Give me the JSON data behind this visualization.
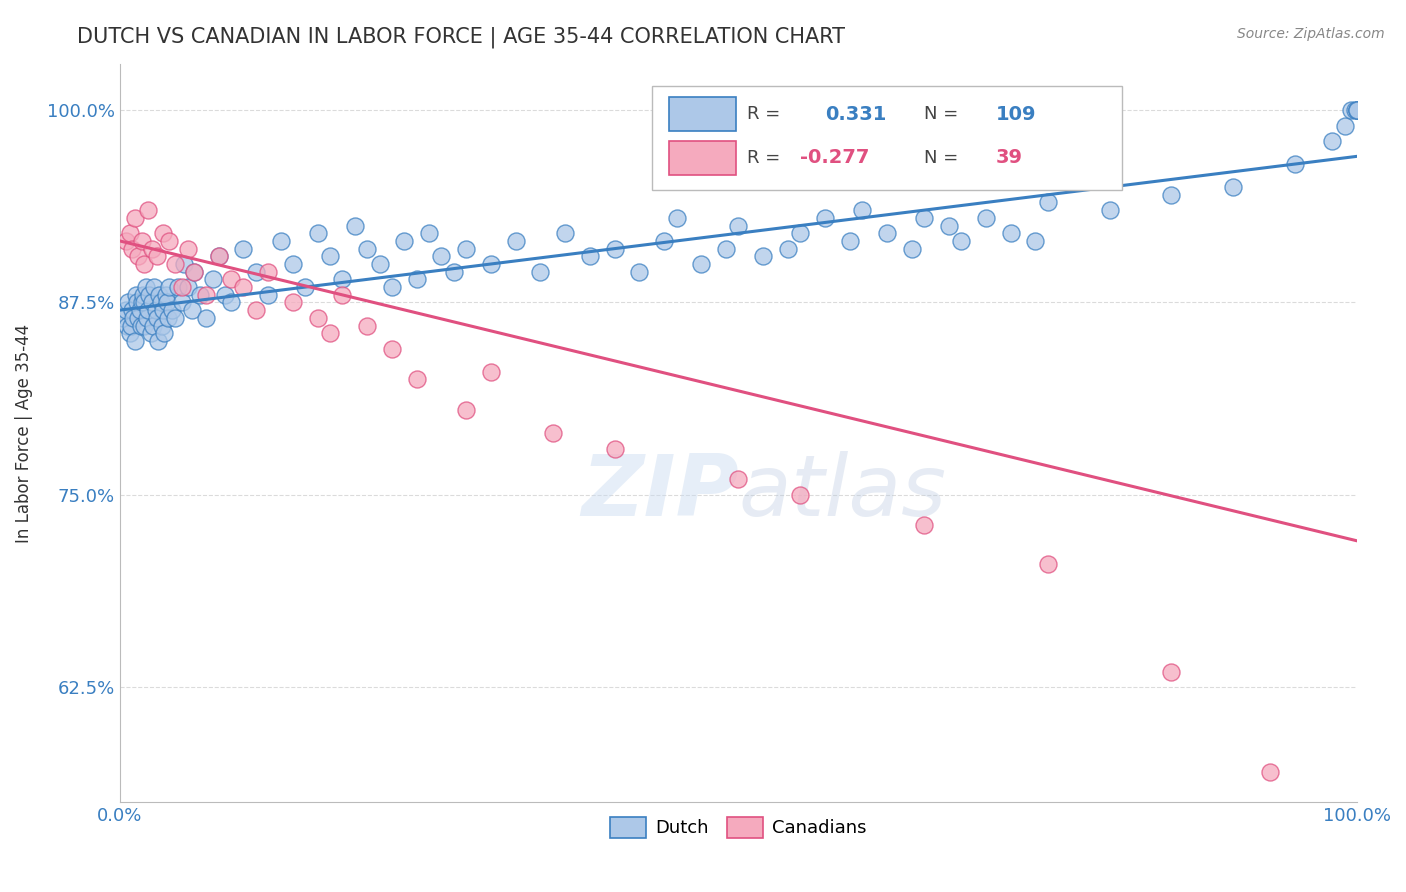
{
  "title": "DUTCH VS CANADIAN IN LABOR FORCE | AGE 35-44 CORRELATION CHART",
  "source": "Source: ZipAtlas.com",
  "ylabel": "In Labor Force | Age 35-44",
  "xlim": [
    0.0,
    100.0
  ],
  "ylim": [
    55.0,
    103.0
  ],
  "yticks": [
    62.5,
    75.0,
    87.5,
    100.0
  ],
  "xticklabels": [
    "0.0%",
    "100.0%"
  ],
  "yticklabels": [
    "62.5%",
    "75.0%",
    "87.5%",
    "100.0%"
  ],
  "dutch_R": 0.331,
  "dutch_N": 109,
  "canadian_R": -0.277,
  "canadian_N": 39,
  "dutch_color": "#adc8e8",
  "canadian_color": "#f5aabe",
  "dutch_line_color": "#3a7fc1",
  "canadian_line_color": "#e05080",
  "watermark_color": "#c5d8ee",
  "background_color": "#ffffff",
  "grid_color": "#cccccc",
  "title_color": "#333333",
  "axis_label_color": "#333333",
  "tick_color": "#3a7fc1",
  "dutch_x": [
    0.3,
    0.5,
    0.6,
    0.7,
    0.8,
    0.9,
    1.0,
    1.1,
    1.2,
    1.3,
    1.4,
    1.5,
    1.6,
    1.7,
    1.8,
    1.9,
    2.0,
    2.0,
    2.1,
    2.2,
    2.3,
    2.4,
    2.5,
    2.6,
    2.7,
    2.8,
    2.9,
    3.0,
    3.1,
    3.2,
    3.3,
    3.4,
    3.5,
    3.6,
    3.7,
    3.8,
    3.9,
    4.0,
    4.2,
    4.5,
    4.7,
    5.0,
    5.2,
    5.5,
    5.8,
    6.0,
    6.5,
    7.0,
    7.5,
    8.0,
    8.5,
    9.0,
    10.0,
    11.0,
    12.0,
    13.0,
    14.0,
    15.0,
    16.0,
    17.0,
    18.0,
    19.0,
    20.0,
    21.0,
    22.0,
    23.0,
    24.0,
    25.0,
    26.0,
    27.0,
    28.0,
    30.0,
    32.0,
    34.0,
    36.0,
    38.0,
    40.0,
    42.0,
    44.0,
    45.0,
    47.0,
    49.0,
    50.0,
    52.0,
    54.0,
    55.0,
    57.0,
    59.0,
    60.0,
    62.0,
    64.0,
    65.0,
    67.0,
    68.0,
    70.0,
    72.0,
    74.0,
    75.0,
    80.0,
    85.0,
    90.0,
    95.0,
    98.0,
    99.0,
    99.5,
    99.8,
    100.0,
    100.0,
    100.0
  ],
  "dutch_y": [
    86.5,
    87.0,
    86.0,
    87.5,
    85.5,
    86.0,
    87.0,
    86.5,
    85.0,
    88.0,
    87.5,
    86.5,
    87.0,
    86.0,
    87.5,
    88.0,
    86.0,
    87.5,
    88.5,
    86.5,
    87.0,
    88.0,
    85.5,
    87.5,
    86.0,
    88.5,
    87.0,
    86.5,
    85.0,
    88.0,
    87.5,
    86.0,
    87.0,
    85.5,
    88.0,
    87.5,
    86.5,
    88.5,
    87.0,
    86.5,
    88.5,
    87.5,
    90.0,
    88.5,
    87.0,
    89.5,
    88.0,
    86.5,
    89.0,
    90.5,
    88.0,
    87.5,
    91.0,
    89.5,
    88.0,
    91.5,
    90.0,
    88.5,
    92.0,
    90.5,
    89.0,
    92.5,
    91.0,
    90.0,
    88.5,
    91.5,
    89.0,
    92.0,
    90.5,
    89.5,
    91.0,
    90.0,
    91.5,
    89.5,
    92.0,
    90.5,
    91.0,
    89.5,
    91.5,
    93.0,
    90.0,
    91.0,
    92.5,
    90.5,
    91.0,
    92.0,
    93.0,
    91.5,
    93.5,
    92.0,
    91.0,
    93.0,
    92.5,
    91.5,
    93.0,
    92.0,
    91.5,
    94.0,
    93.5,
    94.5,
    95.0,
    96.5,
    98.0,
    99.0,
    100.0,
    100.0,
    100.0,
    100.0,
    100.0
  ],
  "canadian_x": [
    0.5,
    0.8,
    1.0,
    1.2,
    1.5,
    1.8,
    2.0,
    2.3,
    2.6,
    3.0,
    3.5,
    4.0,
    4.5,
    5.0,
    5.5,
    6.0,
    7.0,
    8.0,
    9.0,
    10.0,
    11.0,
    12.0,
    14.0,
    16.0,
    17.0,
    18.0,
    20.0,
    22.0,
    24.0,
    28.0,
    30.0,
    35.0,
    40.0,
    50.0,
    55.0,
    65.0,
    75.0,
    85.0,
    93.0
  ],
  "canadian_y": [
    91.5,
    92.0,
    91.0,
    93.0,
    90.5,
    91.5,
    90.0,
    93.5,
    91.0,
    90.5,
    92.0,
    91.5,
    90.0,
    88.5,
    91.0,
    89.5,
    88.0,
    90.5,
    89.0,
    88.5,
    87.0,
    89.5,
    87.5,
    86.5,
    85.5,
    88.0,
    86.0,
    84.5,
    82.5,
    80.5,
    83.0,
    79.0,
    78.0,
    76.0,
    75.0,
    73.0,
    70.5,
    63.5,
    57.0
  ],
  "dutch_line_start_y": 87.0,
  "dutch_line_end_y": 97.0,
  "canadian_line_start_y": 91.5,
  "canadian_line_end_y": 72.0
}
